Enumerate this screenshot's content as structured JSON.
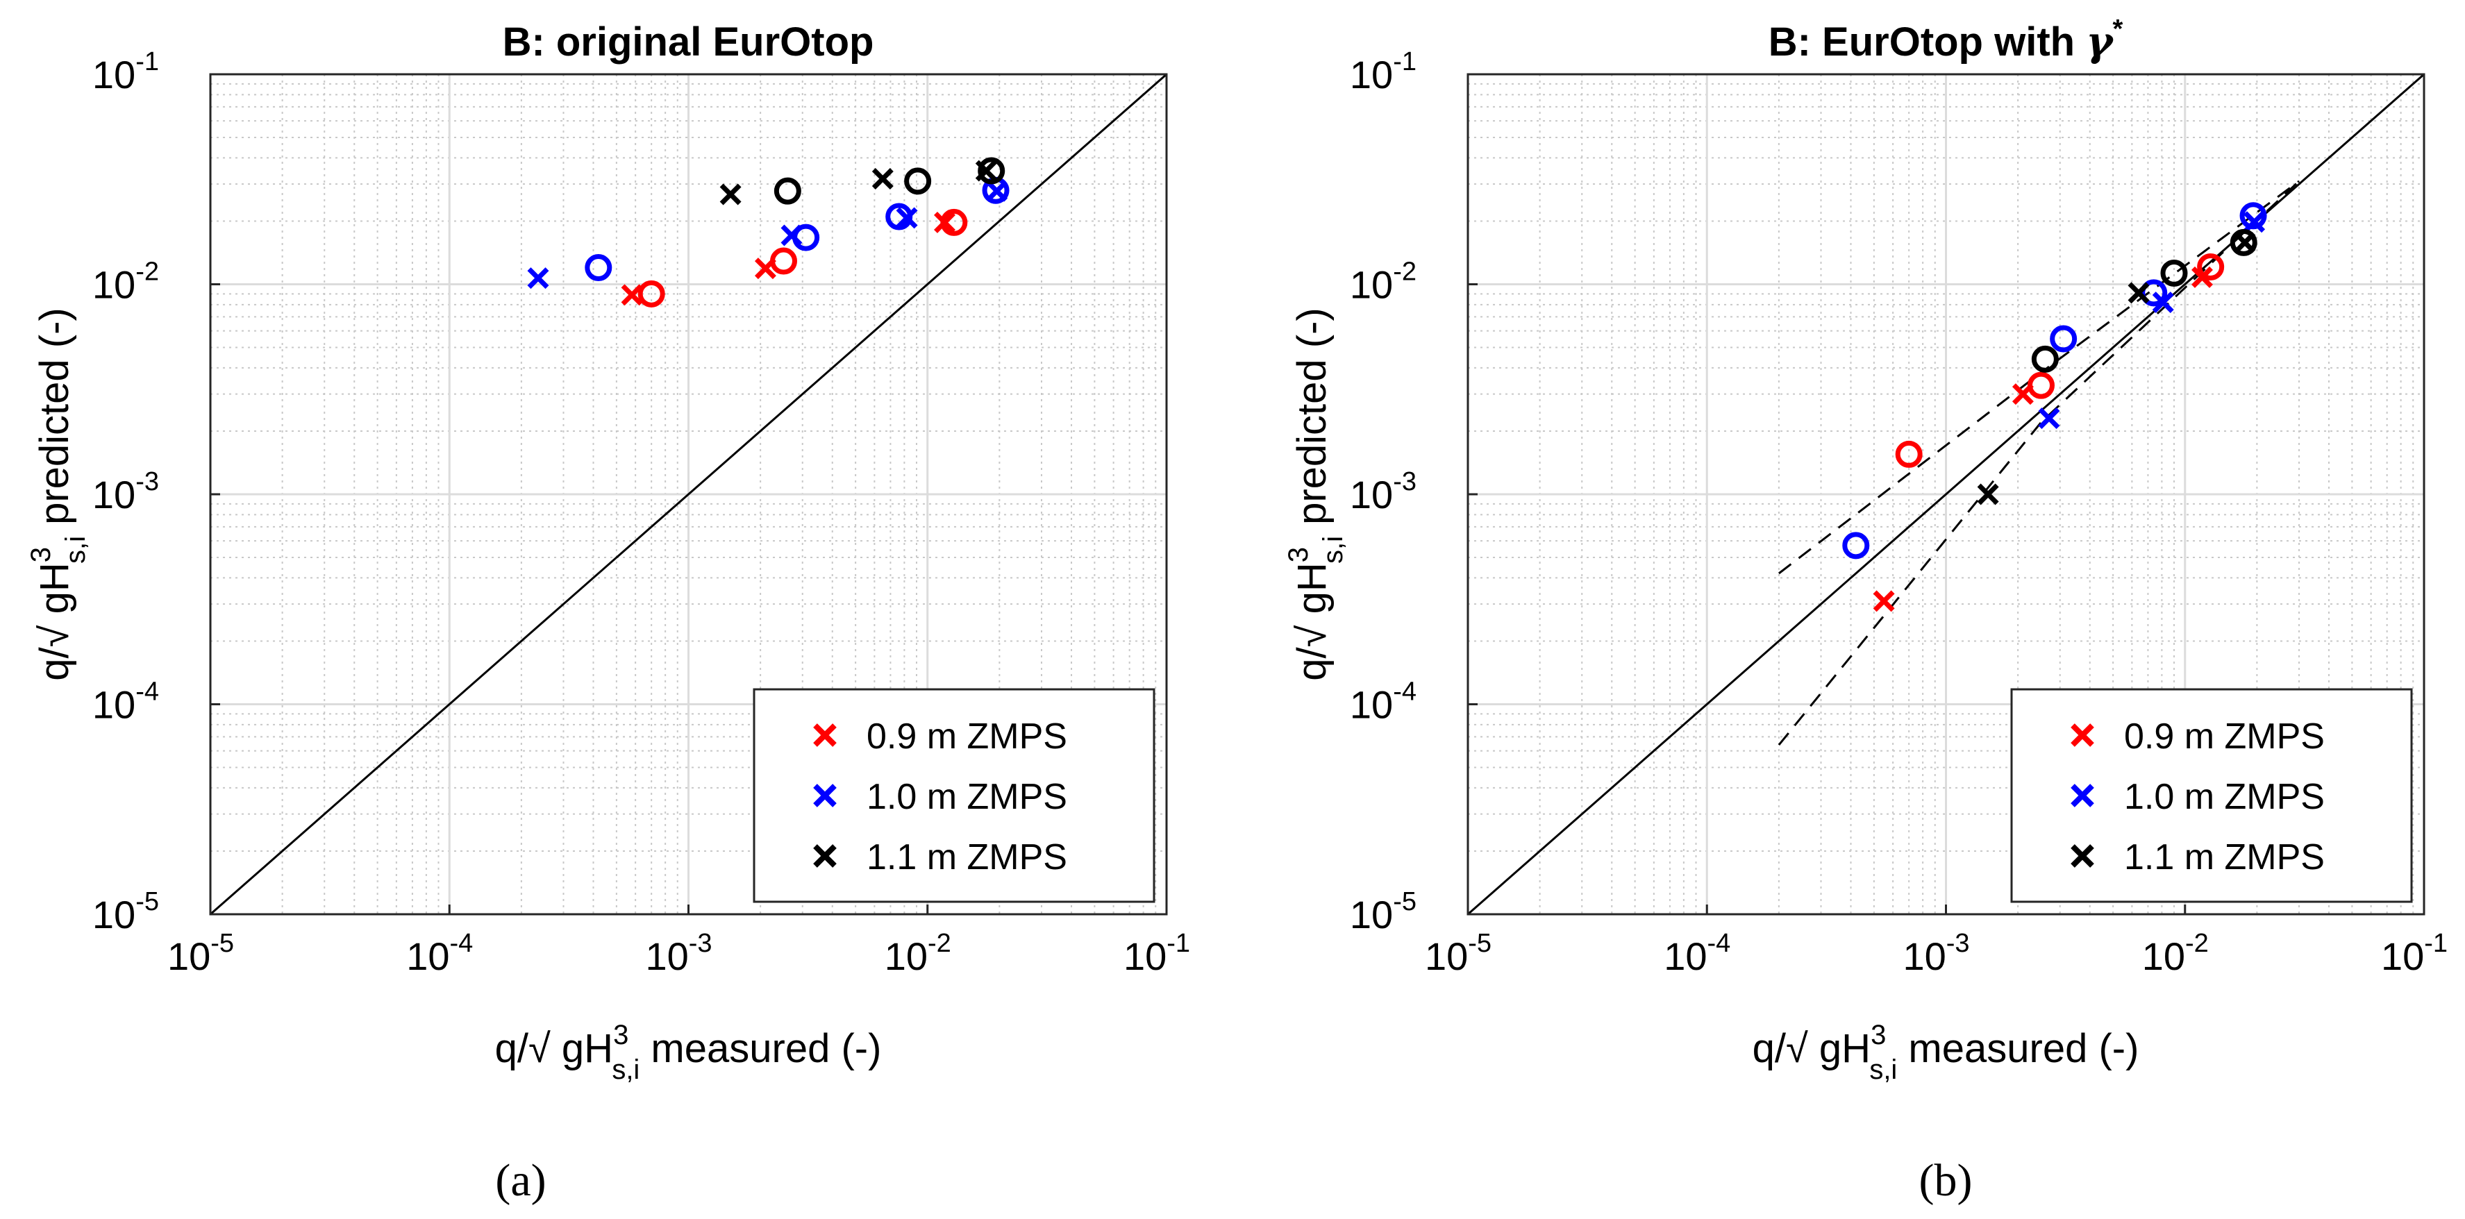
{
  "figure": {
    "panels": [
      {
        "caption": "(a)",
        "title": "B: original EurOtop",
        "title_symbol": "",
        "title_symbol_sup": ""
      },
      {
        "caption": "(b)",
        "title": "B: EurOtop with ",
        "title_symbol": "γ",
        "title_symbol_sup": "*"
      }
    ]
  },
  "chart_data": [
    {
      "type": "scatter",
      "title": "B: original EurOtop",
      "xlabel": {
        "prefix": "q/√ gH",
        "sup": "3",
        "sub": "s,i",
        "suffix": " measured (-)"
      },
      "ylabel": {
        "prefix": "q/√ gH",
        "sup": "3",
        "sub": "s,i",
        "suffix": " predicted (-)"
      },
      "xscale": "log",
      "yscale": "log",
      "xlim": [
        1e-05,
        0.1
      ],
      "ylim": [
        1e-05,
        0.1
      ],
      "ticks": [
        -5,
        -4,
        -3,
        -2,
        -1
      ],
      "tick_base": "10",
      "tick_labels": [
        "-5",
        "-4",
        "-3",
        "-2",
        "-1"
      ],
      "grid": true,
      "legend_position": "bottom-right",
      "lines": [
        {
          "name": "1:1 line",
          "style": "solid",
          "x": [
            1e-05,
            0.1
          ],
          "y": [
            1e-05,
            0.1
          ]
        }
      ],
      "series": [
        {
          "name": "0.9 m ZMPS",
          "color": "#ff0000",
          "cross": {
            "x": [
              0.00058,
              0.0021,
              0.0118
            ],
            "y": [
              0.0089,
              0.0119,
              0.0197
            ]
          },
          "circle": {
            "x": [
              0.0007,
              0.0025,
              0.0129
            ],
            "y": [
              0.009,
              0.0129,
              0.0197
            ]
          }
        },
        {
          "name": "1.0 m ZMPS",
          "color": "#0000ff",
          "cross": {
            "x": [
              0.000235,
              0.0027,
              0.0082,
              0.0195
            ],
            "y": [
              0.0107,
              0.0171,
              0.0207,
              0.0278
            ]
          },
          "circle": {
            "x": [
              0.00042,
              0.0031,
              0.0076,
              0.0193
            ],
            "y": [
              0.012,
              0.0167,
              0.021,
              0.028
            ]
          }
        },
        {
          "name": "1.1 m ZMPS",
          "color": "#000000",
          "cross": {
            "x": [
              0.0015,
              0.0065,
              0.0176
            ],
            "y": [
              0.0268,
              0.0318,
              0.0347
            ]
          },
          "circle": {
            "x": [
              0.0026,
              0.0091,
              0.0185
            ],
            "y": [
              0.0278,
              0.031,
              0.0347
            ]
          }
        }
      ]
    },
    {
      "type": "scatter",
      "title": "B: EurOtop with γ*",
      "xlabel": {
        "prefix": "q/√ gH",
        "sup": "3",
        "sub": "s,i",
        "suffix": " measured (-)"
      },
      "ylabel": {
        "prefix": "q/√ gH",
        "sup": "3",
        "sub": "s,i",
        "suffix": " predicted (-)"
      },
      "xscale": "log",
      "yscale": "log",
      "xlim": [
        1e-05,
        0.1
      ],
      "ylim": [
        1e-05,
        0.1
      ],
      "ticks": [
        -5,
        -4,
        -3,
        -2,
        -1
      ],
      "tick_base": "10",
      "tick_labels": [
        "-5",
        "-4",
        "-3",
        "-2",
        "-1"
      ],
      "grid": true,
      "legend_position": "bottom-right",
      "lines": [
        {
          "name": "1:1 line",
          "style": "solid",
          "x": [
            1e-05,
            0.1
          ],
          "y": [
            1e-05,
            0.1
          ]
        },
        {
          "name": "upper bound",
          "style": "dashed",
          "x": [
            0.0002,
            0.0025,
            0.03
          ],
          "y": [
            0.00042,
            0.0038,
            0.031
          ]
        },
        {
          "name": "lower bound",
          "style": "dashed",
          "x": [
            0.0002,
            0.0025,
            0.03
          ],
          "y": [
            6.4e-05,
            0.0022,
            0.031
          ]
        }
      ],
      "series": [
        {
          "name": "0.9 m ZMPS",
          "color": "#ff0000",
          "cross": {
            "x": [
              0.00055,
              0.0021,
              0.0118
            ],
            "y": [
              0.00031,
              0.003,
              0.0108
            ]
          },
          "circle": {
            "x": [
              0.0007,
              0.0025,
              0.0128
            ],
            "y": [
              0.00155,
              0.0033,
              0.0121
            ]
          }
        },
        {
          "name": "1.0 m ZMPS",
          "color": "#0000ff",
          "cross": {
            "x": [
              0.0027,
              0.0081,
              0.0195
            ],
            "y": [
              0.0023,
              0.0082,
              0.0198
            ]
          },
          "circle": {
            "x": [
              0.00042,
              0.0031,
              0.0074,
              0.0193
            ],
            "y": [
              0.00057,
              0.0055,
              0.0091,
              0.0212
            ]
          }
        },
        {
          "name": "1.1 m ZMPS",
          "color": "#000000",
          "cross": {
            "x": [
              0.0015,
              0.0064,
              0.0178
            ],
            "y": [
              0.001,
              0.0091,
              0.0158
            ]
          },
          "circle": {
            "x": [
              0.0026,
              0.009,
              0.0176
            ],
            "y": [
              0.0044,
              0.0113,
              0.0158
            ]
          }
        }
      ]
    }
  ]
}
